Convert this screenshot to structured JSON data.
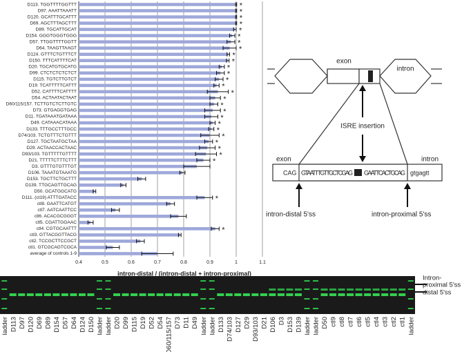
{
  "chart_data": {
    "type": "bar",
    "orientation": "horizontal",
    "x_label": "intron-distal / (intron-distal + intron-proximal)",
    "categories": [
      "D113. TGGTTTTGGTTT",
      "D97. AAATTAAATT",
      "D120. GCATTTGCATTT",
      "D69. AGCTTTAGCTTT",
      "D89. TGCATTGCAT",
      "D154. GGGTGGGTGGG",
      "D57. TTGGTTTTGGTT",
      "D64. TAAGTTAAGT",
      "D124. GTTTCTGTTTCT",
      "D150. TTTCATTTTCAT",
      "D20. TGCATGTGCATG",
      "D99. CTCTCTCTCTCT",
      "D115. TGTCTTGTCT",
      "D19. TCATTTTTCATTT",
      "D52. CATTTTCATTTT",
      "D54. ACTAATACTAAT",
      "D60/115/157. TCTTGTCTCTTGTC",
      "D73. GTGAGGTGAG",
      "D11. TGATAAATGATAAA",
      "D49. CATAAACATAAA",
      "D133. TTTGCCTTTGCC",
      "D74/103. TCTGTTTCTGTTT",
      "D127. TGCTAATGCTAA",
      "D29. ACTAACCACTAAC",
      "D93/103. TGTTTTTGTTTT",
      "D21. TTTTTCTTTCTTT",
      "D3. GTTTGTGTTTGT",
      "D106. TAAATGTAAATG",
      "D153. TGCTTCTGCTTT",
      "D139. TTGCAGTTGCAG",
      "D50. GCATGGCATG",
      "D111. (ct19) ATTTGATACC",
      "ctl8. GAATTCATGT",
      "ctl7. AATCAATTCC",
      "ctl6. ACACGCGGGT",
      "ctl5. CGATTGGAAC",
      "ctl4. CGTGCAATTT",
      "ctl3. GTTACGGTTACG",
      "ctl2. TCCGCTTCCGCT",
      "ctl1. GTCGCAGTCGCA",
      "average of controls 1-9"
    ],
    "values": [
      1.0,
      1.0,
      1.0,
      1.0,
      0.995,
      0.985,
      0.98,
      0.975,
      0.97,
      0.968,
      0.945,
      0.94,
      0.935,
      0.925,
      0.93,
      0.92,
      0.915,
      0.91,
      0.905,
      0.91,
      0.905,
      0.9,
      0.895,
      0.89,
      0.885,
      0.875,
      0.85,
      0.795,
      0.64,
      0.57,
      0.46,
      0.88,
      0.75,
      0.54,
      0.78,
      0.445,
      0.92,
      0.785,
      0.635,
      0.53,
      0.7
    ],
    "errors": [
      0.002,
      0.002,
      0.002,
      0.002,
      0.005,
      0.01,
      0.015,
      0.025,
      0.005,
      0.005,
      0.01,
      0.015,
      0.015,
      0.01,
      0.04,
      0.02,
      0.015,
      0.03,
      0.025,
      0.01,
      0.01,
      0.035,
      0.015,
      0.03,
      0.04,
      0.025,
      0.05,
      0.01,
      0.015,
      0.01,
      0.005,
      0.03,
      0.015,
      0.015,
      0.03,
      0.01,
      0.015,
      0.005,
      0.015,
      0.025,
      0.06
    ],
    "annotations": [
      "*",
      "*",
      "*",
      "*",
      "*",
      "*",
      "*",
      "*",
      "*",
      "*",
      "*",
      "*",
      "*",
      "*",
      "*",
      "*",
      "*",
      "*",
      "*",
      "*",
      "*",
      "*",
      "*",
      "*",
      "*",
      "*",
      null,
      null,
      null,
      null,
      null,
      "*",
      null,
      null,
      null,
      null,
      "*",
      null,
      null,
      null,
      null
    ],
    "color": "#9ea8da",
    "error_color": "#111",
    "xlim": [
      0.4,
      1.1
    ],
    "xticks": [
      0.4,
      0.5,
      0.6,
      0.7,
      0.8,
      0.9,
      1,
      1.1
    ],
    "grid": true
  },
  "diagram": {
    "top_exon": "exon",
    "top_intron": "intron",
    "insertion": "ISRE insertion",
    "bottom_exon": "exon",
    "bottom_intron": "intron",
    "cag": "CAG",
    "seq_left": "GTAATTTGTTGCTCGAG",
    "seq_right": "GAATTCACTGCAG",
    "tail": "gtgagtt",
    "distal": "intron-distal 5'ss",
    "proximal": "intron-proximal 5'ss"
  },
  "gel": {
    "lanes": [
      "ladder",
      "D113",
      "D97",
      "D120",
      "D69",
      "D89",
      "D154",
      "D57",
      "D64",
      "D124",
      "D150",
      "ladder",
      "ladder",
      "D20",
      "D99",
      "D115",
      "D19",
      "D52",
      "D54",
      "D60/115/157",
      "D73",
      "D11",
      "D49",
      "ladder",
      "ladder",
      "D133",
      "D74/103",
      "D127",
      "D29",
      "D93/103",
      "D21",
      "D106",
      "D3",
      "D153",
      "D139",
      "ladder",
      "ladder",
      "D50",
      "ctl9",
      "ctl8",
      "ctl7",
      "ctl6",
      "ctl5",
      "ctl4",
      "ctl3",
      "ctl2",
      "ctl1",
      "ladder"
    ],
    "proximal_label": [
      "Intron-",
      "proximal 5'ss"
    ],
    "distal_label": "distal 5'ss"
  }
}
